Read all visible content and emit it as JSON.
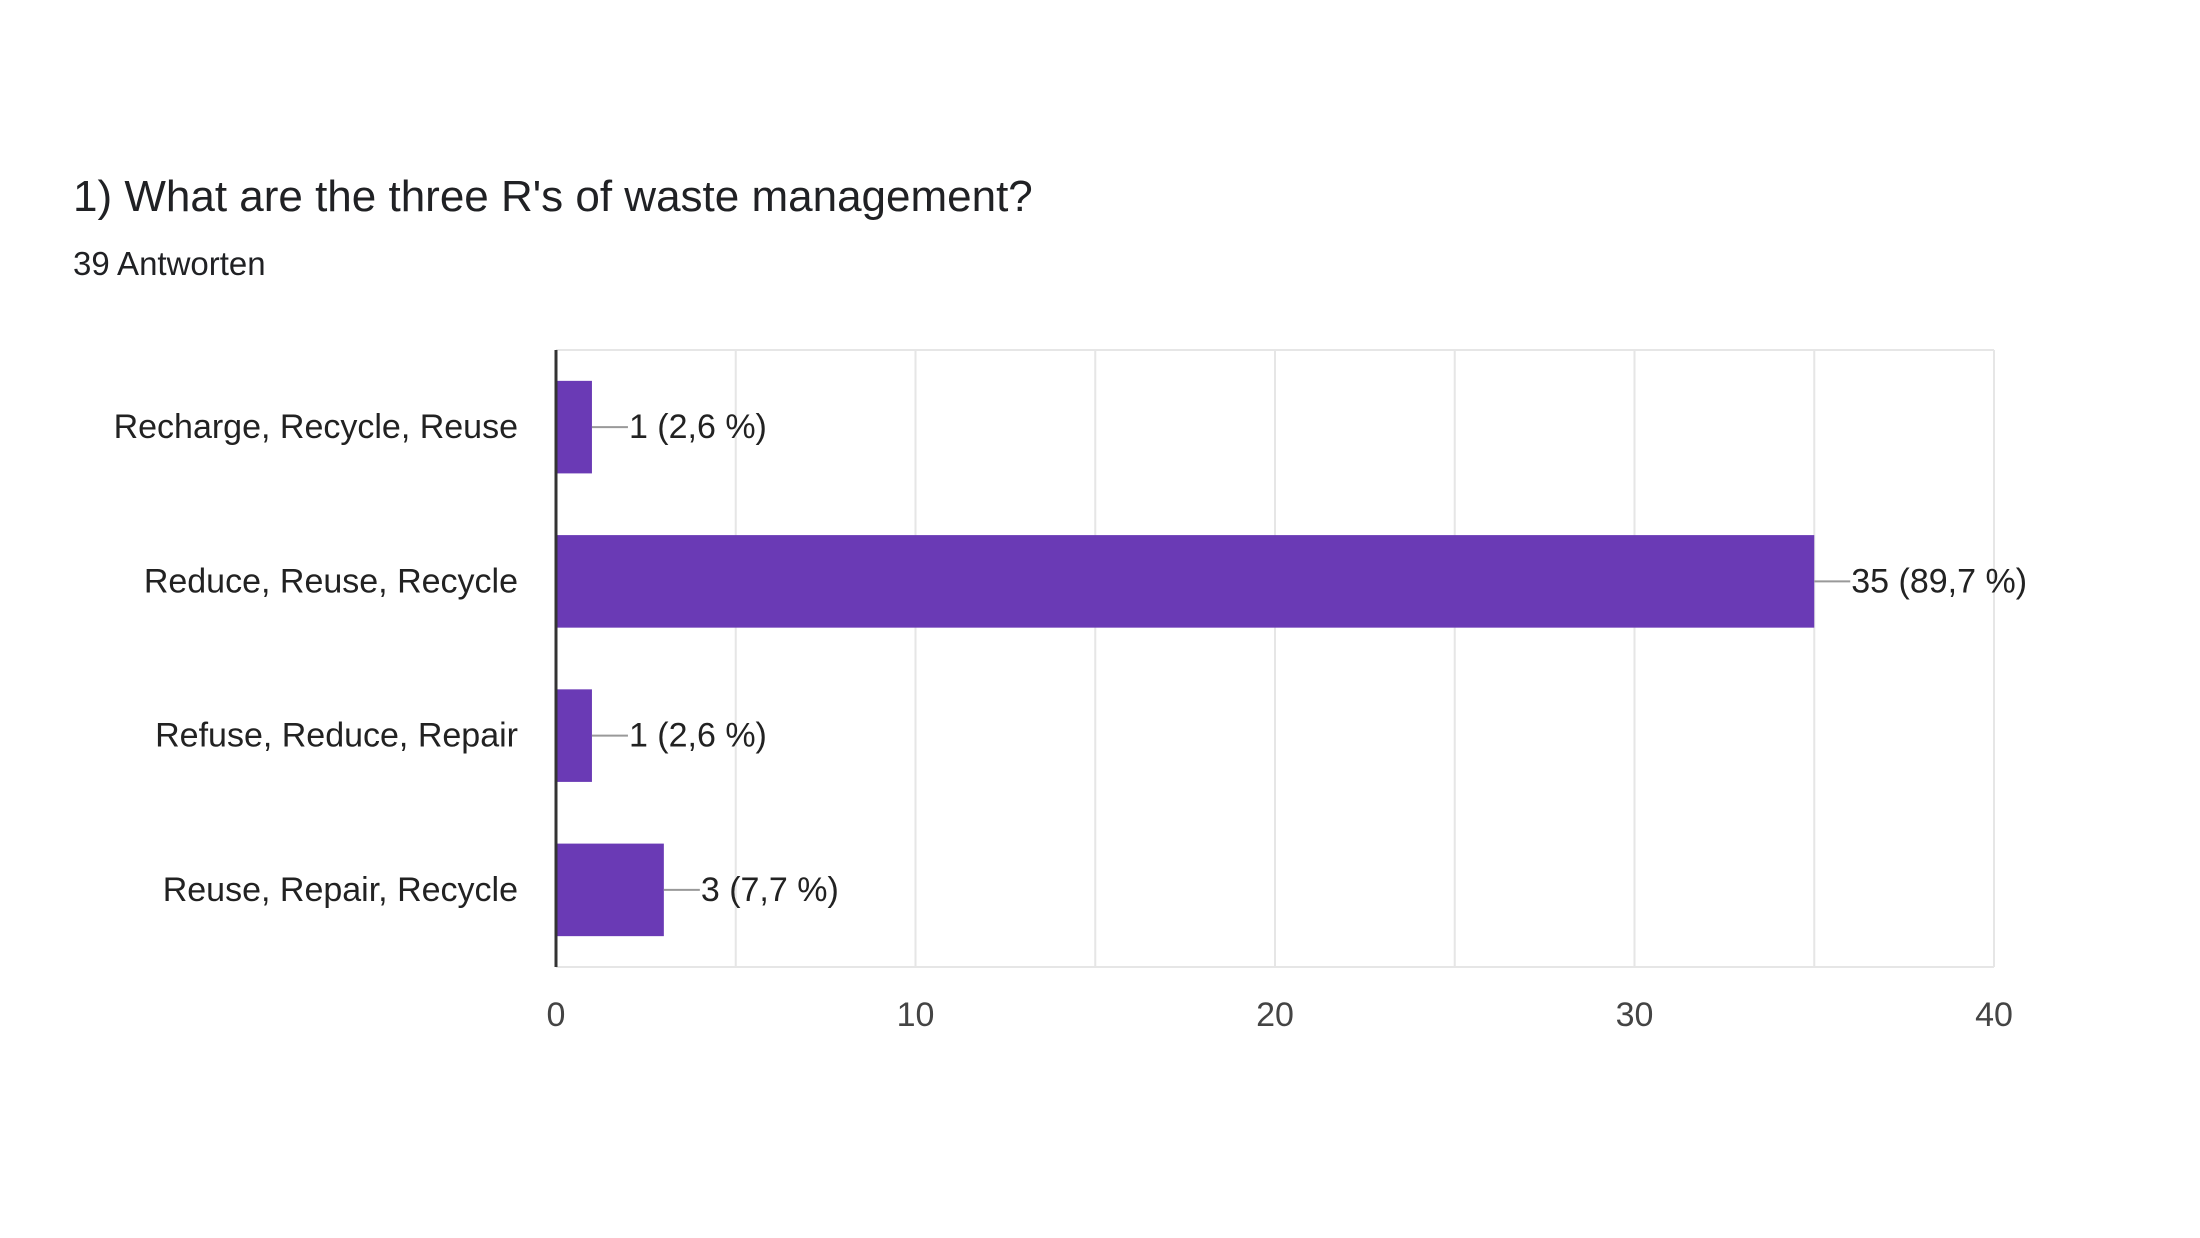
{
  "question": {
    "title": "1) What are the three R's of waste management?",
    "response_count": "39 Antworten"
  },
  "colors": {
    "bar": "#6a3ab5",
    "grid": "#e6e6e6",
    "axis": "#333333",
    "leader": "#999999"
  },
  "chart_data": {
    "type": "bar",
    "orientation": "horizontal",
    "categories": [
      "Recharge, Recycle, Reuse",
      "Reduce, Reuse, Recycle",
      "Refuse, Reduce, Repair",
      "Reuse, Repair, Recycle"
    ],
    "values": [
      1,
      35,
      1,
      3
    ],
    "data_labels": [
      "1 (2,6 %)",
      "35 (89,7 %)",
      "1 (2,6 %)",
      "3 (7,7 %)"
    ],
    "x_ticks": [
      "0",
      "10",
      "20",
      "30",
      "40"
    ],
    "xlim": [
      0,
      40
    ],
    "grid": true,
    "minor_gridlines_every": 5
  }
}
